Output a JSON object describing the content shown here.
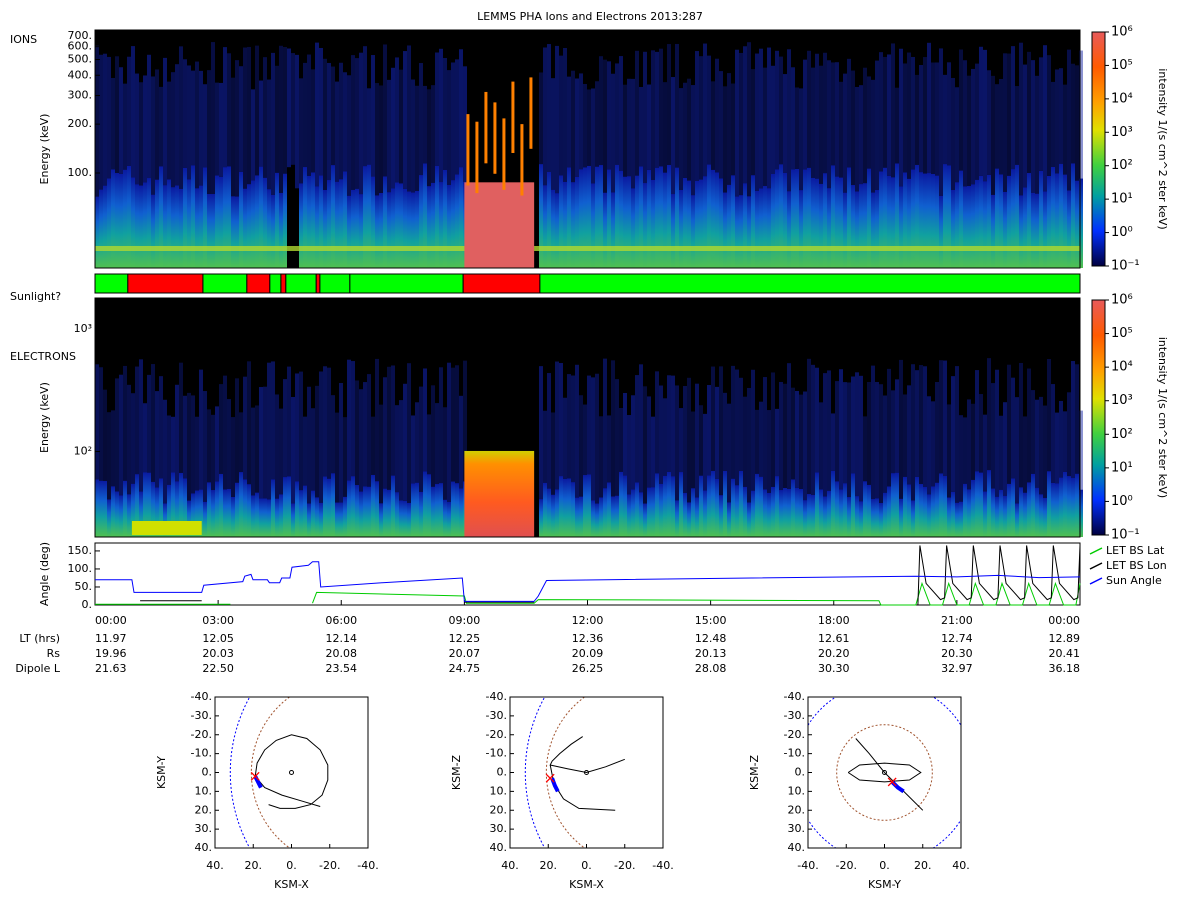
{
  "title": "LEMMS PHA Ions and Electrons  2013:287",
  "chart_data": [
    {
      "type": "spectrogram",
      "panel_label": "IONS",
      "ylabel": "Energy (keV)",
      "log_y": true,
      "ylim": [
        26,
        760
      ],
      "yticks": [
        {
          "value": 100,
          "label": "100."
        },
        {
          "value": 200,
          "label": "200."
        },
        {
          "value": 300,
          "label": "300."
        },
        {
          "value": 400,
          "label": "400."
        },
        {
          "value": 500,
          "label": "500."
        },
        {
          "value": 600,
          "label": "600."
        },
        {
          "value": 700,
          "label": "700."
        }
      ],
      "colorbar": {
        "label": "intensity 1/(s cm^2 ster keV)",
        "lim": [
          0.1,
          1000000
        ],
        "ticks": [
          {
            "value": 0.1,
            "label": "10⁻¹"
          },
          {
            "value": 1,
            "label": "10⁰"
          },
          {
            "value": 10,
            "label": "10¹"
          },
          {
            "value": 100,
            "label": "10²"
          },
          {
            "value": 1000,
            "label": "10³"
          },
          {
            "value": 10000,
            "label": "10⁴"
          },
          {
            "value": 100000,
            "label": "10⁵"
          },
          {
            "value": 1000000,
            "label": "10⁶"
          }
        ]
      }
    },
    {
      "type": "timeline",
      "label": "Sunlight?",
      "segments": [
        {
          "start": 0,
          "end": 0.8,
          "color": "#00ff00"
        },
        {
          "start": 0.8,
          "end": 2.63,
          "color": "#ff0000"
        },
        {
          "start": 2.63,
          "end": 3.7,
          "color": "#00ff00"
        },
        {
          "start": 3.7,
          "end": 4.26,
          "color": "#ff0000"
        },
        {
          "start": 4.26,
          "end": 4.53,
          "color": "#00ff00"
        },
        {
          "start": 4.53,
          "end": 4.65,
          "color": "#ff0000"
        },
        {
          "start": 4.65,
          "end": 5.39,
          "color": "#00ff00"
        },
        {
          "start": 5.39,
          "end": 5.48,
          "color": "#ff0000"
        },
        {
          "start": 5.48,
          "end": 6.21,
          "color": "#00ff00"
        },
        {
          "start": 6.21,
          "end": 8.97,
          "color": "#00ff00"
        },
        {
          "start": 8.97,
          "end": 10.84,
          "color": "#ff0000"
        },
        {
          "start": 10.84,
          "end": 24,
          "color": "#00ff00"
        }
      ]
    },
    {
      "type": "spectrogram",
      "panel_label": "ELECTRONS",
      "ylabel": "Energy (keV)",
      "log_y": true,
      "ylim": [
        20,
        1800
      ],
      "yticks": [
        {
          "value": 100,
          "label": "10²"
        },
        {
          "value": 1000,
          "label": "10³"
        }
      ],
      "colorbar": {
        "label": "intensity 1/(s cm^2 ster keV)",
        "lim": [
          0.1,
          1000000
        ],
        "ticks": [
          {
            "value": 0.1,
            "label": "10⁻¹"
          },
          {
            "value": 1,
            "label": "10⁰"
          },
          {
            "value": 10,
            "label": "10¹"
          },
          {
            "value": 100,
            "label": "10²"
          },
          {
            "value": 1000,
            "label": "10³"
          },
          {
            "value": 10000,
            "label": "10⁴"
          },
          {
            "value": 100000,
            "label": "10⁵"
          },
          {
            "value": 1000000,
            "label": "10⁶"
          }
        ]
      }
    },
    {
      "type": "line",
      "ylabel": "Angle (deg)",
      "ylim": [
        0,
        172
      ],
      "xlim": [
        0,
        24
      ],
      "legend": "right",
      "yticks": [
        {
          "value": 0,
          "label": "0."
        },
        {
          "value": 50,
          "label": "50."
        },
        {
          "value": 100,
          "label": "100."
        },
        {
          "value": 150,
          "label": "150."
        }
      ],
      "xticks": [
        {
          "value": 0,
          "label": "00:00"
        },
        {
          "value": 3,
          "label": "03:00"
        },
        {
          "value": 6,
          "label": "06:00"
        },
        {
          "value": 9,
          "label": "09:00"
        },
        {
          "value": 12,
          "label": "12:00"
        },
        {
          "value": 15,
          "label": "15:00"
        },
        {
          "value": 18,
          "label": "18:00"
        },
        {
          "value": 21,
          "label": "21:00"
        },
        {
          "value": 24,
          "label": "00:00"
        }
      ],
      "series": [
        {
          "name": "LET BS Lat",
          "color": "#00cc00",
          "x": [
            0,
            3.3,
            null,
            5.3,
            5.4,
            9.0,
            9.05,
            10.7,
            10.8,
            19.1,
            19.15,
            19.9,
            20.0,
            20.15,
            20.35,
            20.65,
            20.8,
            21.0,
            21.3,
            21.45,
            21.65,
            21.95,
            22.1,
            22.3,
            22.6,
            22.75,
            22.95,
            23.25,
            23.4,
            23.6,
            23.9,
            24
          ],
          "values": [
            2,
            2,
            null,
            5,
            35,
            25,
            5,
            5,
            15,
            12,
            0,
            0,
            0,
            60,
            0,
            0,
            60,
            0,
            0,
            60,
            0,
            0,
            60,
            0,
            0,
            60,
            0,
            0,
            60,
            0,
            0,
            60
          ]
        },
        {
          "name": "LET BS Lon",
          "color": "#000000",
          "x": [
            1.1,
            2.6,
            null,
            9.0,
            10.7,
            null,
            20.05,
            20.1,
            20.25,
            20.6,
            20.7,
            20.75,
            20.9,
            21.25,
            21.35,
            21.4,
            21.55,
            21.9,
            22.0,
            22.05,
            22.2,
            22.55,
            22.65,
            22.7,
            22.85,
            23.2,
            23.3,
            23.35,
            23.5,
            23.85,
            23.95,
            24
          ],
          "values": [
            12,
            12,
            null,
            8,
            8,
            null,
            0,
            165,
            60,
            15,
            20,
            165,
            60,
            15,
            20,
            165,
            60,
            15,
            20,
            165,
            60,
            15,
            20,
            165,
            60,
            15,
            20,
            165,
            60,
            15,
            20,
            165
          ]
        },
        {
          "name": "Sun Angle",
          "color": "#0000ff",
          "x": [
            0,
            0.9,
            0.95,
            2.6,
            2.65,
            3.6,
            3.65,
            3.8,
            3.85,
            4.2,
            4.25,
            4.5,
            4.55,
            4.75,
            4.8,
            5.2,
            5.3,
            5.45,
            5.5,
            7,
            8.95,
            9.0,
            10.7,
            10.8,
            11.0,
            16,
            20,
            21,
            22,
            23,
            24
          ],
          "values": [
            70,
            70,
            35,
            35,
            55,
            65,
            80,
            85,
            70,
            70,
            62,
            62,
            75,
            75,
            105,
            110,
            120,
            120,
            50,
            62,
            75,
            10,
            10,
            25,
            68,
            75,
            80,
            78,
            82,
            76,
            78
          ]
        }
      ]
    },
    {
      "type": "orbit",
      "xlabel": "KSM-X",
      "ylabel": "KSM-Y",
      "xlim": [
        40,
        -40
      ],
      "ylim": [
        40,
        -40
      ],
      "xticks": [
        {
          "value": 40,
          "label": "40."
        },
        {
          "value": 20,
          "label": "20."
        },
        {
          "value": 0,
          "label": "0."
        },
        {
          "value": -20,
          "label": "-20."
        },
        {
          "value": -40,
          "label": "-40."
        }
      ],
      "yticks": [
        {
          "value": -40,
          "label": "-40."
        },
        {
          "value": -30,
          "label": "-30."
        },
        {
          "value": -20,
          "label": "-20."
        },
        {
          "value": -10,
          "label": "-10."
        },
        {
          "value": 0,
          "label": "0."
        },
        {
          "value": 10,
          "label": "10."
        },
        {
          "value": 20,
          "label": "20."
        },
        {
          "value": 30,
          "label": "30."
        },
        {
          "value": 40,
          "label": "40."
        }
      ],
      "orbit": {
        "color": "#000000",
        "x": [
          -15,
          -5,
          5,
          14,
          19,
          18,
          14,
          8,
          0,
          -8,
          -15,
          -19,
          -19,
          -16,
          -10,
          -2,
          6,
          12
        ],
        "y": [
          18,
          15,
          12,
          8,
          2,
          -5,
          -12,
          -17,
          -20,
          -18,
          -12,
          -4,
          4,
          12,
          17,
          19,
          19,
          17
        ]
      },
      "track": {
        "color": "#0000ff",
        "x": [
          19,
          17.5,
          16
        ],
        "y": [
          2,
          5,
          8
        ]
      },
      "position": {
        "color": "#ff0000",
        "x": 19,
        "y": 2
      }
    },
    {
      "type": "orbit",
      "xlabel": "KSM-X",
      "ylabel": "KSM-Z",
      "xlim": [
        40,
        -40
      ],
      "ylim": [
        40,
        -40
      ],
      "xticks": [
        {
          "value": 40,
          "label": "40."
        },
        {
          "value": 20,
          "label": "20."
        },
        {
          "value": 0,
          "label": "0."
        },
        {
          "value": -20,
          "label": "-20."
        },
        {
          "value": -40,
          "label": "-40."
        }
      ],
      "yticks": [
        {
          "value": -40,
          "label": "-40."
        },
        {
          "value": -30,
          "label": "-30."
        },
        {
          "value": -20,
          "label": "-20."
        },
        {
          "value": -10,
          "label": "-10."
        },
        {
          "value": 0,
          "label": "0."
        },
        {
          "value": 10,
          "label": "10."
        },
        {
          "value": 20,
          "label": "20."
        },
        {
          "value": 30,
          "label": "30."
        },
        {
          "value": 40,
          "label": "40."
        }
      ],
      "orbit": {
        "color": "#000000",
        "x": [
          2,
          8,
          14,
          18,
          19,
          10,
          0,
          -10,
          -20,
          null,
          19,
          17,
          12,
          4,
          -15
        ],
        "y": [
          -19,
          -15,
          -10,
          -6,
          -4,
          -2,
          0,
          -3,
          -7,
          null,
          -4,
          6,
          14,
          19,
          20
        ]
      },
      "track": {
        "color": "#0000ff",
        "x": [
          18,
          16.5,
          15
        ],
        "y": [
          3,
          7,
          10
        ]
      },
      "position": {
        "color": "#ff0000",
        "x": 19,
        "y": 3
      }
    },
    {
      "type": "orbit",
      "xlabel": "KSM-Y",
      "ylabel": "KSM-Z",
      "xlim": [
        -40,
        40
      ],
      "ylim": [
        40,
        -40
      ],
      "xticks": [
        {
          "value": -40,
          "label": "-40."
        },
        {
          "value": -20,
          "label": "-20."
        },
        {
          "value": 0,
          "label": "0."
        },
        {
          "value": 20,
          "label": "20."
        },
        {
          "value": 40,
          "label": "40."
        }
      ],
      "yticks": [
        {
          "value": -40,
          "label": "-40."
        },
        {
          "value": -30,
          "label": "-30."
        },
        {
          "value": -20,
          "label": "-20."
        },
        {
          "value": -10,
          "label": "-10."
        },
        {
          "value": 0,
          "label": "0."
        },
        {
          "value": 10,
          "label": "10."
        },
        {
          "value": 20,
          "label": "20."
        },
        {
          "value": 30,
          "label": "30."
        },
        {
          "value": 40,
          "label": "40."
        }
      ],
      "orbit": {
        "color": "#000000",
        "x": [
          -19,
          -13,
          0,
          13,
          19,
          13,
          0,
          -13,
          -19,
          null,
          -15,
          -8,
          0,
          6,
          12,
          20
        ],
        "y": [
          0,
          -4,
          -5,
          -4,
          0,
          4,
          5,
          4,
          0,
          null,
          -18,
          -10,
          0,
          6,
          12,
          20
        ]
      },
      "track": {
        "color": "#0000ff",
        "x": [
          4,
          7,
          10
        ],
        "y": [
          5,
          8,
          10
        ]
      },
      "position": {
        "color": "#ff0000",
        "x": 4,
        "y": 5
      }
    }
  ],
  "ephemeris": {
    "rows": [
      {
        "label": "LT (hrs)",
        "values": [
          "11.97",
          "12.05",
          "12.14",
          "12.25",
          "12.36",
          "12.48",
          "12.61",
          "12.74",
          "12.89"
        ]
      },
      {
        "label": "Rs",
        "values": [
          "19.96",
          "20.03",
          "20.08",
          "20.07",
          "20.09",
          "20.13",
          "20.20",
          "20.30",
          "20.41"
        ]
      },
      {
        "label": "Dipole L",
        "values": [
          "21.63",
          "22.50",
          "23.54",
          "24.75",
          "26.25",
          "28.08",
          "30.30",
          "32.97",
          "36.18"
        ]
      }
    ]
  }
}
